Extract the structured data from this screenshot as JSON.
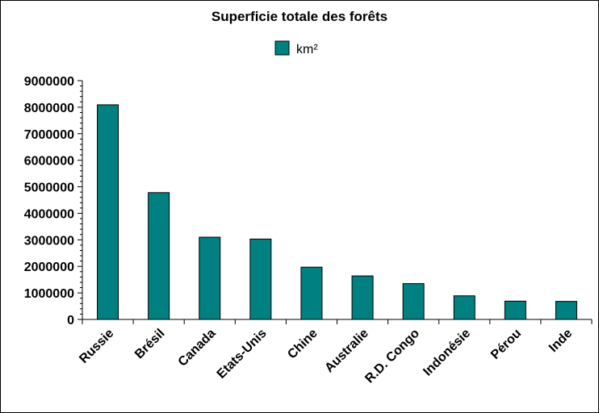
{
  "chart_data": {
    "type": "bar",
    "title": "Superficie totale des forêts",
    "legend": {
      "label": "km²",
      "position": "top"
    },
    "categories": [
      "Russie",
      "Brésil",
      "Canada",
      "Etats-Unis",
      "Chine",
      "Australie",
      "R.D. Congo",
      "Indonésie",
      "Pérou",
      "Inde"
    ],
    "series": [
      {
        "name": "km²",
        "values": [
          8090000,
          4780000,
          3100000,
          3030000,
          1970000,
          1640000,
          1350000,
          890000,
          690000,
          680000
        ]
      }
    ],
    "ylim": [
      0,
      9000000
    ],
    "yticks": [
      "0",
      "1000000",
      "2000000",
      "3000000",
      "4000000",
      "5000000",
      "6000000",
      "7000000",
      "8000000",
      "9000000"
    ],
    "grid": false,
    "bar_color": "#008080"
  }
}
